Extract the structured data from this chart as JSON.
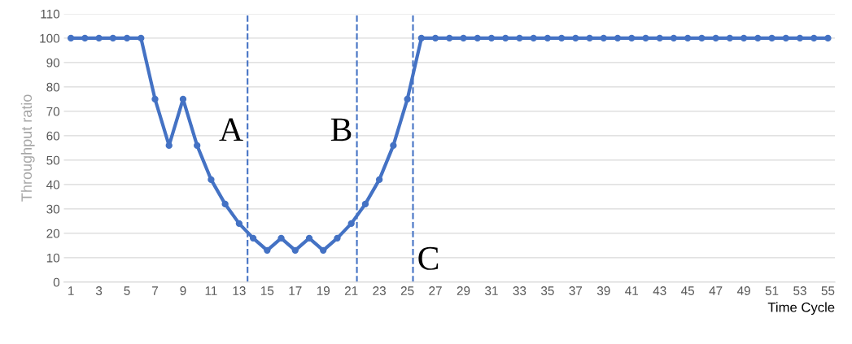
{
  "chart_data": {
    "type": "line",
    "xlabel": "Time Cycle",
    "ylabel": "Throughput ratio",
    "x": [
      1,
      2,
      3,
      4,
      5,
      6,
      7,
      8,
      9,
      10,
      11,
      12,
      13,
      14,
      15,
      16,
      17,
      18,
      19,
      20,
      21,
      22,
      23,
      24,
      25,
      26,
      27,
      28,
      29,
      30,
      31,
      32,
      33,
      34,
      35,
      36,
      37,
      38,
      39,
      40,
      41,
      42,
      43,
      44,
      45,
      46,
      47,
      48,
      49,
      50,
      51,
      52,
      53,
      54,
      55
    ],
    "series": [
      {
        "color": "#4472c4",
        "values": [
          100,
          100,
          100,
          100,
          100,
          100,
          75,
          56,
          75,
          56,
          42,
          32,
          24,
          18,
          13,
          18,
          13,
          18,
          13,
          18,
          24,
          32,
          42,
          56,
          75,
          100,
          100,
          100,
          100,
          100,
          100,
          100,
          100,
          100,
          100,
          100,
          100,
          100,
          100,
          100,
          100,
          100,
          100,
          100,
          100,
          100,
          100,
          100,
          100,
          100,
          100,
          100,
          100,
          100,
          100
        ]
      }
    ],
    "xlim": [
      0.5,
      55.5
    ],
    "xticks": [
      1,
      3,
      5,
      7,
      9,
      11,
      13,
      15,
      17,
      19,
      21,
      23,
      25,
      27,
      29,
      31,
      33,
      35,
      37,
      39,
      41,
      43,
      45,
      47,
      49,
      51,
      53,
      55
    ],
    "ylim": [
      0,
      110
    ],
    "yticks": [
      0,
      10,
      20,
      30,
      40,
      50,
      60,
      70,
      80,
      90,
      100,
      110
    ],
    "grid": "y",
    "marker": "circle",
    "line_style": "solid",
    "legend": false,
    "ref_lines": [
      {
        "axis": "x",
        "value": 13.6,
        "label": "A",
        "color": "#4472c4",
        "line_style": "dashed"
      },
      {
        "axis": "x",
        "value": 21.4,
        "label": "B",
        "color": "#4472c4",
        "line_style": "dashed"
      },
      {
        "axis": "x",
        "value": 25.4,
        "label": "C",
        "color": "#4472c4",
        "line_style": "dashed"
      }
    ]
  }
}
